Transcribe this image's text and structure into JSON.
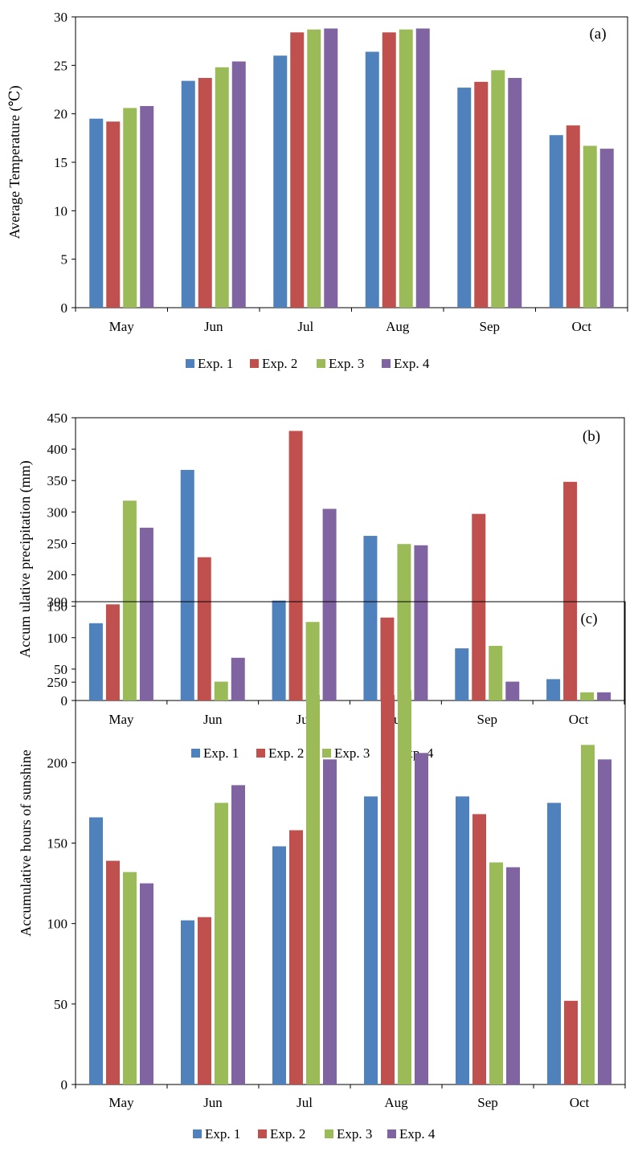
{
  "chart_data": [
    {
      "type": "bar",
      "panel_label": "(a)",
      "title": "",
      "xlabel": "",
      "ylabel": "Average Temperature (℃)",
      "categories": [
        "May",
        "Jun",
        "Jul",
        "Aug",
        "Sep",
        "Oct"
      ],
      "ylim": [
        0,
        30
      ],
      "yticks": [
        0,
        5,
        10,
        15,
        20,
        25,
        30
      ],
      "grid": false,
      "legend_position": "bottom",
      "series": [
        {
          "name": "Exp. 1",
          "color": "#4f81bd",
          "values": [
            19.5,
            23.4,
            26.0,
            26.4,
            22.7,
            17.8
          ]
        },
        {
          "name": "Exp. 2",
          "color": "#c0504d",
          "values": [
            19.2,
            23.7,
            28.4,
            28.4,
            23.3,
            18.8
          ]
        },
        {
          "name": "Exp. 3",
          "color": "#9bbb59",
          "values": [
            20.6,
            24.8,
            28.7,
            28.7,
            24.5,
            16.7
          ]
        },
        {
          "name": "Exp. 4",
          "color": "#8064a2",
          "values": [
            20.8,
            25.4,
            28.8,
            28.8,
            23.7,
            16.4
          ]
        }
      ]
    },
    {
      "type": "bar",
      "panel_label": "(b)",
      "title": "",
      "xlabel": "",
      "ylabel": "Accum ulative precipitation (mm)",
      "categories": [
        "May",
        "Jun",
        "Jul",
        "Aug",
        "Sep",
        "Oct"
      ],
      "ylim": [
        0,
        450
      ],
      "yticks": [
        0,
        50,
        100,
        150,
        200,
        250,
        300,
        350,
        400,
        450
      ],
      "grid": false,
      "legend_position": "bottom",
      "series": [
        {
          "name": "Exp. 1",
          "color": "#4f81bd",
          "values": [
            123,
            367,
            159,
            262,
            83,
            34
          ]
        },
        {
          "name": "Exp. 2",
          "color": "#c0504d",
          "values": [
            153,
            228,
            429,
            132,
            297,
            348
          ]
        },
        {
          "name": "Exp. 3",
          "color": "#9bbb59",
          "values": [
            318,
            30,
            125,
            249,
            87,
            13
          ]
        },
        {
          "name": "Exp. 4",
          "color": "#8064a2",
          "values": [
            275,
            68,
            305,
            247,
            30,
            13
          ]
        }
      ]
    },
    {
      "type": "bar",
      "panel_label": "(c)",
      "title": "",
      "xlabel": "",
      "ylabel": "Accumulative hours of sunshine",
      "categories": [
        "May",
        "Jun",
        "Jul",
        "Aug",
        "Sep",
        "Oct"
      ],
      "ylim": [
        0,
        300
      ],
      "yticks": [
        0,
        50,
        100,
        150,
        200,
        250,
        300
      ],
      "grid": false,
      "legend_position": "bottom",
      "series": [
        {
          "name": "Exp. 1",
          "color": "#4f81bd",
          "values": [
            166,
            102,
            148,
            179,
            179,
            175
          ]
        },
        {
          "name": "Exp. 2",
          "color": "#c0504d",
          "values": [
            139,
            104,
            158,
            242,
            168,
            52
          ]
        },
        {
          "name": "Exp. 3",
          "color": "#9bbb59",
          "values": [
            132,
            175,
            242,
            245,
            138,
            211
          ]
        },
        {
          "name": "Exp. 4",
          "color": "#8064a2",
          "values": [
            125,
            186,
            202,
            206,
            135,
            202
          ]
        }
      ]
    }
  ]
}
